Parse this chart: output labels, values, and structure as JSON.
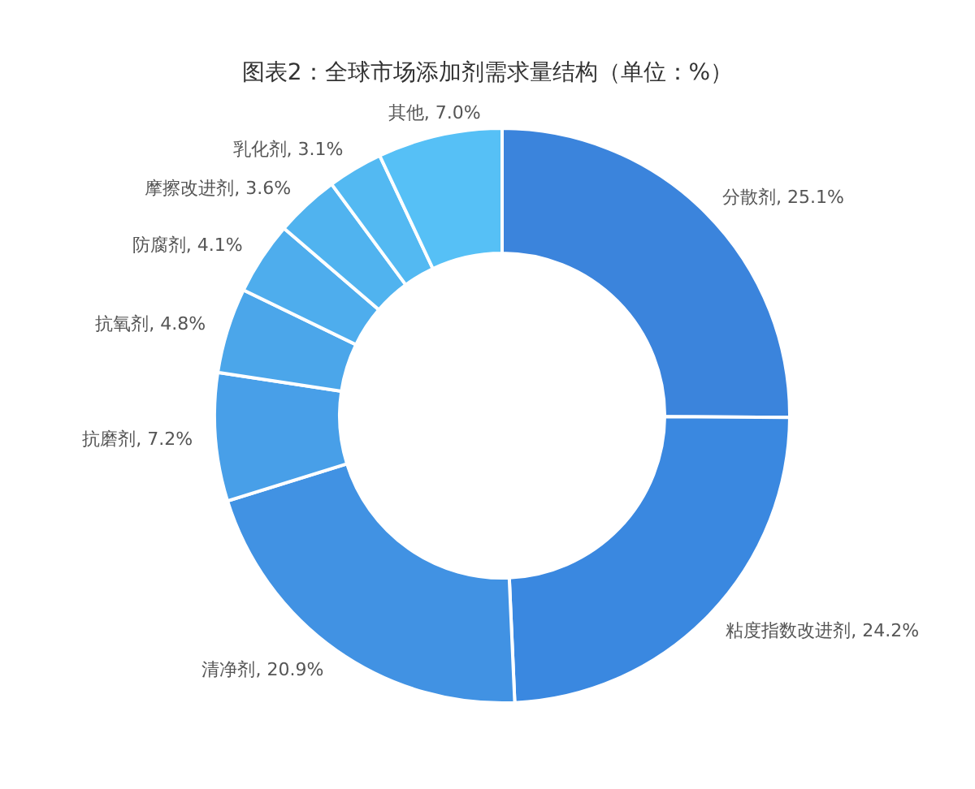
{
  "chart_data": {
    "type": "donut",
    "title": "图表2：全球市场添加剂需求量结构（单位：%）",
    "categories": [
      "分散剂",
      "粘度指数改进剂",
      "清净剂",
      "抗磨剂",
      "抗氧剂",
      "防腐剂",
      "摩擦改进剂",
      "乳化剂",
      "其他"
    ],
    "values": [
      25.1,
      24.2,
      20.9,
      7.2,
      4.8,
      4.1,
      3.6,
      3.1,
      7.0
    ],
    "colors": [
      "#3b84dc",
      "#3a88e0",
      "#4192e3",
      "#489fe8",
      "#4ba6ea",
      "#4eaded",
      "#50b3ef",
      "#53b9f2",
      "#56c0f6"
    ],
    "value_labels": [
      "25.1%",
      "24.2%",
      "20.9%",
      "7.2%",
      "4.8%",
      "4.1%",
      "3.6%",
      "3.1%",
      "7.0%"
    ]
  }
}
